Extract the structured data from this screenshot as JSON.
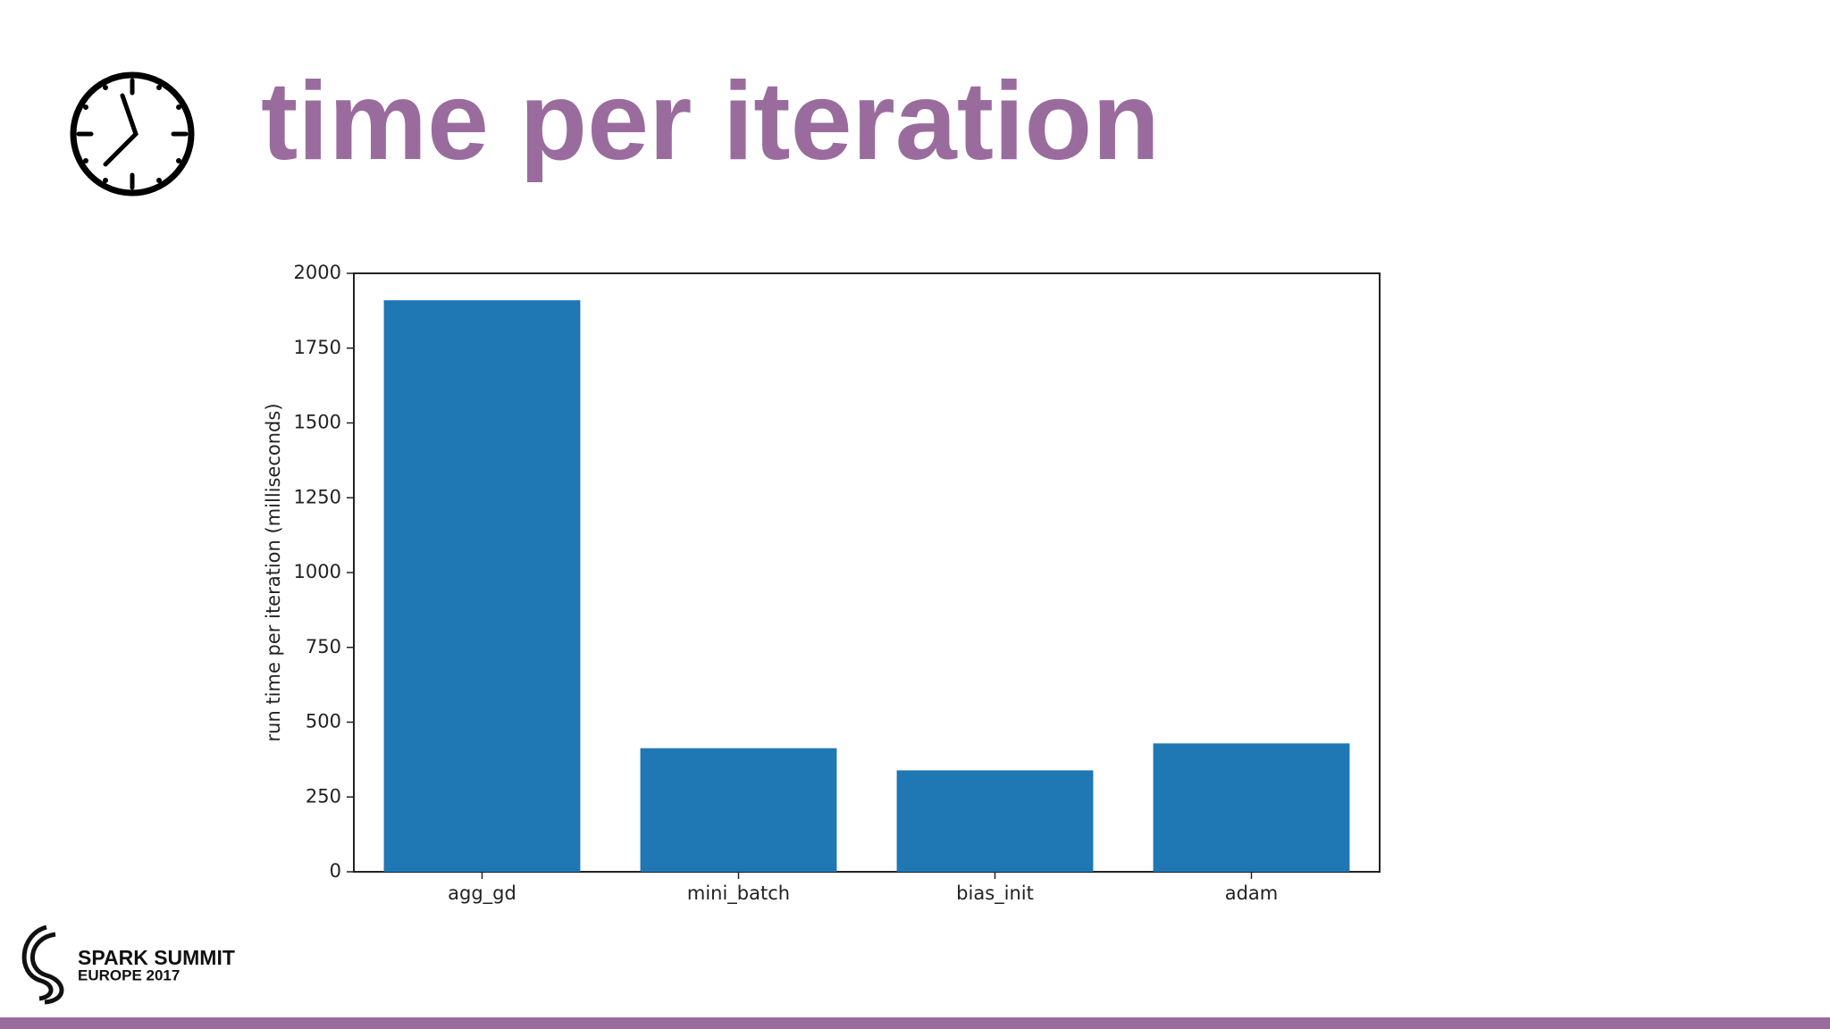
{
  "chart_data": {
    "type": "bar",
    "title": "time per iteration",
    "y_label": "run time per iteration (milliseconds)",
    "categories": [
      "agg_gd",
      "mini_batch",
      "bias_init",
      "adam"
    ],
    "values": [
      1910,
      413,
      339,
      429
    ],
    "color": "#1f77b4",
    "ylim": [
      0,
      2000
    ],
    "yticks": [
      0,
      250,
      500,
      750,
      1000,
      1250,
      1500,
      1750,
      2000
    ],
    "grid": false
  },
  "footer": {
    "brand": "SPARK SUMMIT",
    "event": "EUROPE 2017"
  }
}
